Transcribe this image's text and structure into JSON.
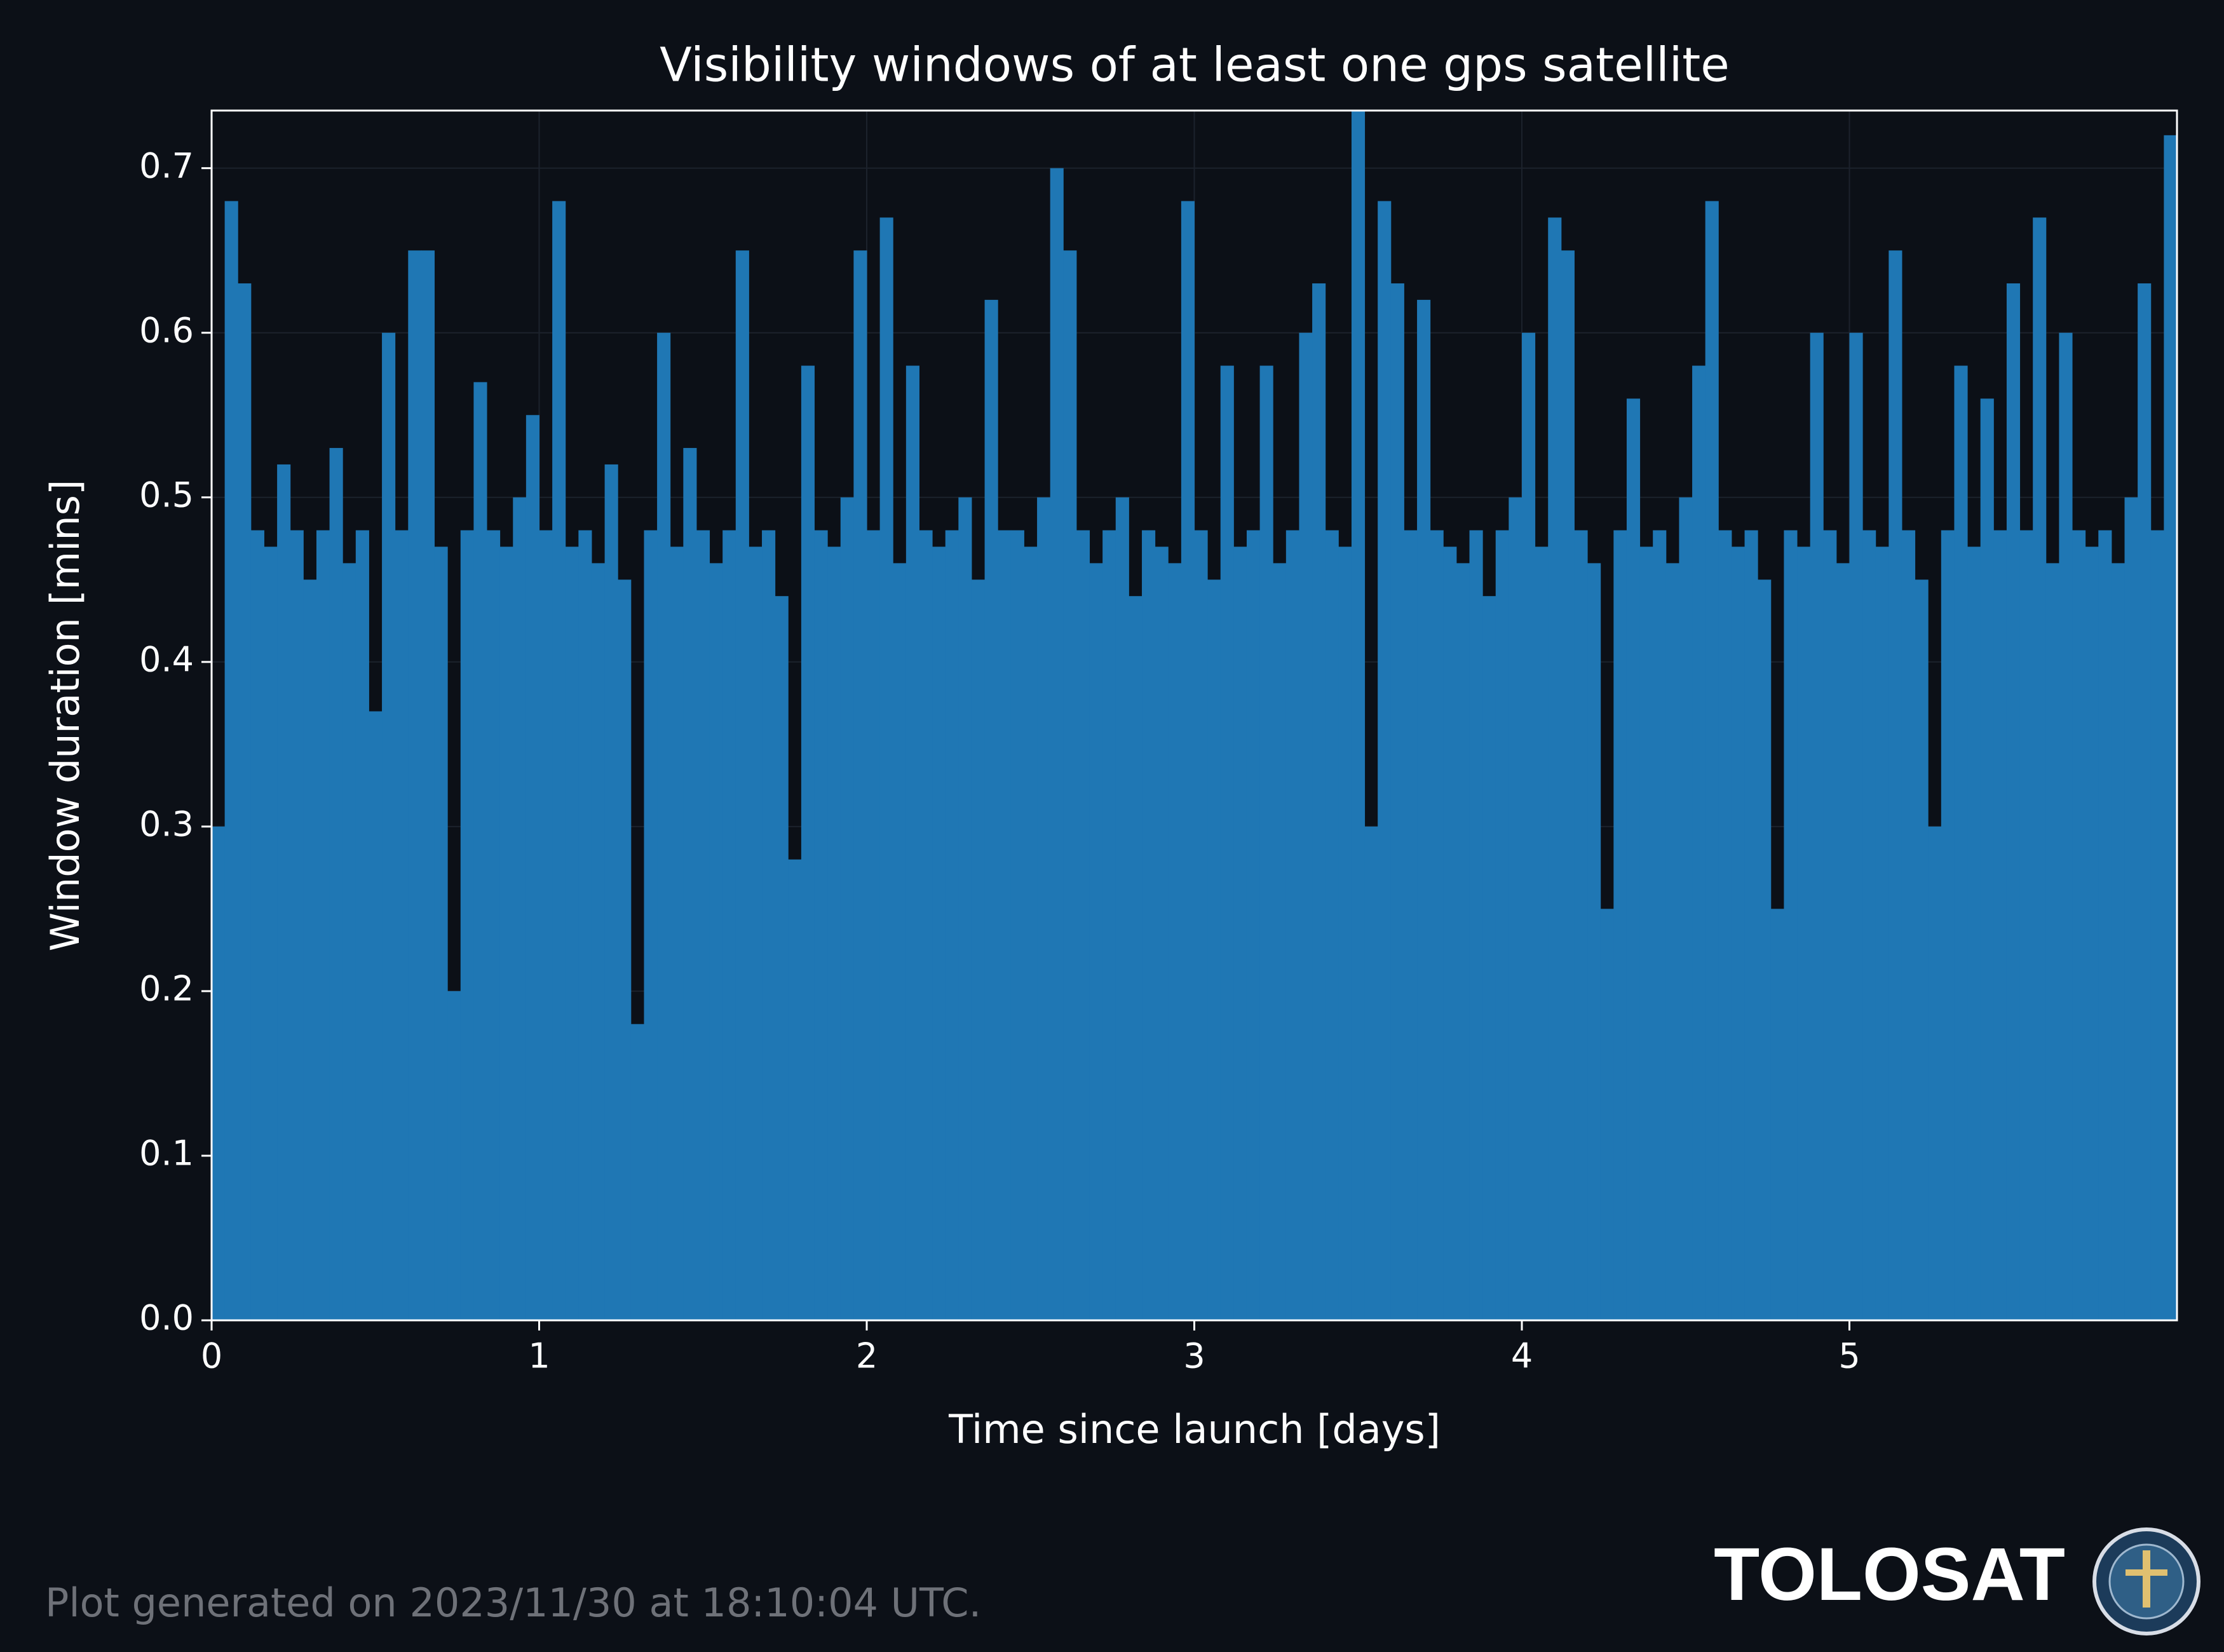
{
  "chart_data": {
    "type": "histogram",
    "title": "Visibility windows of at least one gps satellite",
    "x_label": "Time since launch [days]",
    "y_label": "Window duration [mins]",
    "color": "#1f77b4",
    "grid": true,
    "xlim": [
      0,
      6
    ],
    "xticks": [
      0,
      1,
      2,
      3,
      4,
      5
    ],
    "ylim": [
      0,
      0.735
    ],
    "yticks": [
      {
        "value": 0,
        "label": "0.0"
      },
      0.1,
      0.2,
      0.3,
      0.4,
      0.5,
      0.6,
      0.7
    ],
    "bins": [
      0,
      0.04,
      0.08,
      0.12,
      0.16,
      0.2,
      0.24,
      0.28,
      0.32,
      0.36,
      0.4,
      0.44,
      0.48,
      0.52,
      0.56,
      0.6,
      0.64,
      0.68,
      0.72,
      0.76,
      0.8,
      0.84,
      0.88,
      0.92,
      0.96,
      1,
      1.04,
      1.08,
      1.12,
      1.16,
      1.2,
      1.24,
      1.28,
      1.32,
      1.36,
      1.4,
      1.44,
      1.48,
      1.52,
      1.56,
      1.6,
      1.64,
      1.68,
      1.72,
      1.76,
      1.8,
      1.84,
      1.88,
      1.92,
      1.96,
      2,
      2.04,
      2.08,
      2.12,
      2.16,
      2.2,
      2.24,
      2.28,
      2.32,
      2.36,
      2.4,
      2.44,
      2.48,
      2.52,
      2.56,
      2.6,
      2.64,
      2.68,
      2.72,
      2.76,
      2.8,
      2.84,
      2.88,
      2.92,
      2.96,
      3,
      3.04,
      3.08,
      3.12,
      3.16,
      3.2,
      3.24,
      3.28,
      3.32,
      3.36,
      3.4,
      3.44,
      3.48,
      3.52,
      3.56,
      3.6,
      3.64,
      3.68,
      3.72,
      3.76,
      3.8,
      3.84,
      3.88,
      3.92,
      3.96,
      4,
      4.04,
      4.08,
      4.12,
      4.16,
      4.2,
      4.24,
      4.28,
      4.32,
      4.36,
      4.4,
      4.44,
      4.48,
      4.52,
      4.56,
      4.6,
      4.64,
      4.68,
      4.72,
      4.76,
      4.8,
      4.84,
      4.88,
      4.92,
      4.96,
      5,
      5.04,
      5.08,
      5.12,
      5.16,
      5.2,
      5.24,
      5.28,
      5.32,
      5.36,
      5.4,
      5.44,
      5.48,
      5.52,
      5.56,
      5.6,
      5.64,
      5.68,
      5.72,
      5.76,
      5.8,
      5.84,
      5.88,
      5.92,
      5.96,
      6
    ],
    "values": [
      0.3,
      0.68,
      0.63,
      0.48,
      0.47,
      0.52,
      0.48,
      0.45,
      0.48,
      0.53,
      0.46,
      0.48,
      0.37,
      0.6,
      0.48,
      0.65,
      0.65,
      0.47,
      0.2,
      0.48,
      0.57,
      0.48,
      0.47,
      0.5,
      0.55,
      0.48,
      0.68,
      0.47,
      0.48,
      0.46,
      0.52,
      0.45,
      0.18,
      0.48,
      0.6,
      0.47,
      0.53,
      0.48,
      0.46,
      0.48,
      0.65,
      0.47,
      0.48,
      0.44,
      0.28,
      0.58,
      0.48,
      0.47,
      0.5,
      0.65,
      0.48,
      0.67,
      0.46,
      0.58,
      0.48,
      0.47,
      0.48,
      0.5,
      0.45,
      0.62,
      0.48,
      0.48,
      0.47,
      0.5,
      0.7,
      0.65,
      0.48,
      0.46,
      0.48,
      0.5,
      0.44,
      0.48,
      0.47,
      0.46,
      0.68,
      0.48,
      0.45,
      0.58,
      0.47,
      0.48,
      0.58,
      0.46,
      0.48,
      0.6,
      0.63,
      0.48,
      0.47,
      0.735,
      0.3,
      0.68,
      0.63,
      0.48,
      0.62,
      0.48,
      0.47,
      0.46,
      0.48,
      0.44,
      0.48,
      0.5,
      0.6,
      0.47,
      0.67,
      0.65,
      0.48,
      0.46,
      0.25,
      0.48,
      0.56,
      0.47,
      0.48,
      0.46,
      0.5,
      0.58,
      0.68,
      0.48,
      0.47,
      0.48,
      0.45,
      0.25,
      0.48,
      0.47,
      0.6,
      0.48,
      0.46,
      0.6,
      0.48,
      0.47,
      0.65,
      0.48,
      0.45,
      0.3,
      0.48,
      0.58,
      0.47,
      0.56,
      0.48,
      0.63,
      0.48,
      0.67,
      0.46,
      0.6,
      0.48,
      0.47,
      0.48,
      0.46,
      0.5,
      0.63,
      0.48,
      0.72
    ]
  },
  "footer": {
    "note": "Plot generated on 2023/11/30 at 18:10:04 UTC.",
    "brand": "TOLOSAT"
  }
}
